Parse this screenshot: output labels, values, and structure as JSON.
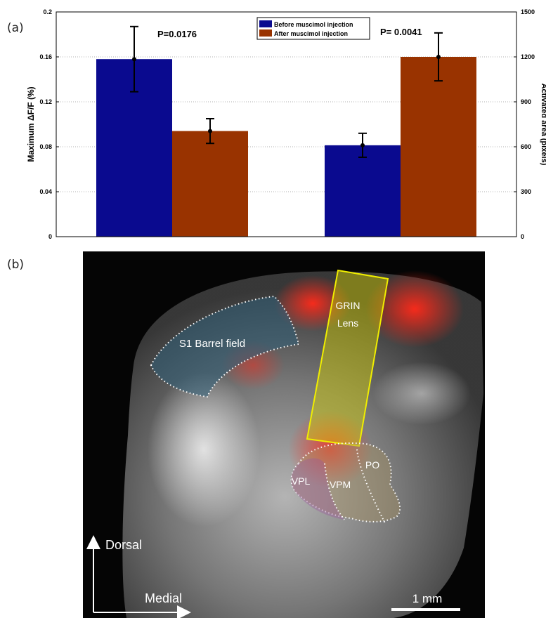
{
  "panel_a_label": "(a)",
  "panel_b_label": "(b)",
  "chart_data": {
    "type": "bar",
    "categories": [
      "Maximum ΔF/F",
      "Activated area"
    ],
    "series": [
      {
        "name": "Before muscimol injection",
        "color": "#0a0a8f",
        "values": [
          0.158,
          610
        ],
        "errors": [
          0.029,
          80
        ]
      },
      {
        "name": "After muscimol injection",
        "color": "#993300",
        "values": [
          0.094,
          1200
        ],
        "errors": [
          0.011,
          160
        ]
      }
    ],
    "means_shown": [
      0.158,
      0.094,
      610,
      1200
    ],
    "ylabel": "Maximum ΔF/F (%)",
    "ylabel_right": "Activated area (pixels)",
    "ylim": [
      0,
      0.2
    ],
    "ylim_right": [
      0,
      1500
    ],
    "yticks": [
      "0",
      "0.04",
      "0.08",
      "0.12",
      "0.16",
      "0.2"
    ],
    "yticks_right": [
      "0",
      "300",
      "600",
      "900",
      "1200",
      "1500"
    ],
    "annotations": [
      "P=0.0176",
      "P= 0.0041"
    ],
    "legend_position": "top-center",
    "grid": true
  },
  "image_panel": {
    "labels": {
      "s1": "S1 Barrel field",
      "grin_1": "GRIN",
      "grin_2": "Lens",
      "vpl": "VPL",
      "vpm": "VPM",
      "po": "PO",
      "dorsal": "Dorsal",
      "medial": "Medial",
      "scale": "1 mm"
    },
    "colors": {
      "background": "#050505",
      "tissue": "#9a9a9a",
      "fluorescence": "#ff2a1a",
      "lens": "#d4d000",
      "s1_overlay": "#2f5f78"
    }
  }
}
